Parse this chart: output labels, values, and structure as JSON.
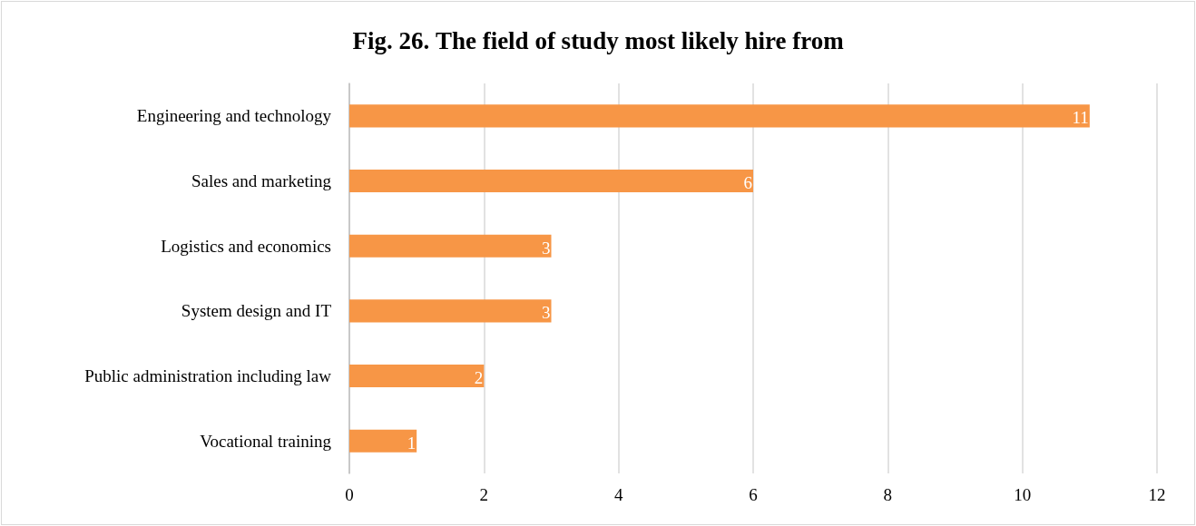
{
  "chart_data": {
    "type": "bar",
    "orientation": "horizontal",
    "title": "Fig. 26. The field of study most likely hire from",
    "categories": [
      "Engineering and technology",
      "Sales and marketing",
      "Logistics and economics",
      "System design and IT",
      "Public administration including law",
      "Vocational training"
    ],
    "values": [
      11,
      6,
      3,
      3,
      2,
      1
    ],
    "color": "#f79646",
    "xlim": [
      0,
      12
    ],
    "xticks": [
      0,
      2,
      4,
      6,
      8,
      10,
      12
    ],
    "grid": "x",
    "data_labels": true
  }
}
